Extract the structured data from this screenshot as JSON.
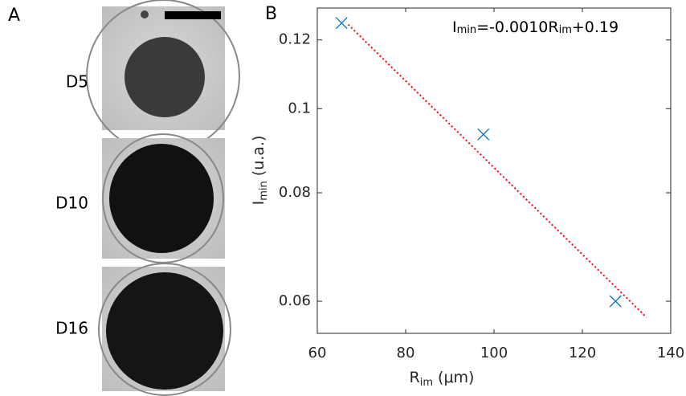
{
  "panels": {
    "a_label": "A",
    "b_label": "B",
    "rows": [
      "D5",
      "D10",
      "D16"
    ]
  },
  "chart_data": {
    "type": "scatter",
    "log_y": true,
    "annotation": [
      "I",
      "min",
      "=-0.0010R",
      "im",
      "+0.19"
    ],
    "xlabel": [
      "R",
      "im",
      " (μm)"
    ],
    "ylabel": [
      "I",
      "min",
      " (u.a.)"
    ],
    "xlim": [
      60,
      140
    ],
    "xticks": [
      60,
      80,
      100,
      120,
      140
    ],
    "ylim": [
      0.0551,
      0.1306
    ],
    "yticks": [
      0.06,
      0.08,
      0.1,
      0.12
    ],
    "series": [
      {
        "color": "#0072bd",
        "marker": "x",
        "x": [
          65.5,
          97.6,
          127.5
        ],
        "values": [
          0.1255,
          0.0934,
          0.06
        ]
      },
      {
        "color": "#ff0000",
        "style": "dotted",
        "x": [
          67,
          134.5
        ],
        "values": [
          0.125,
          0.0575
        ]
      }
    ]
  }
}
